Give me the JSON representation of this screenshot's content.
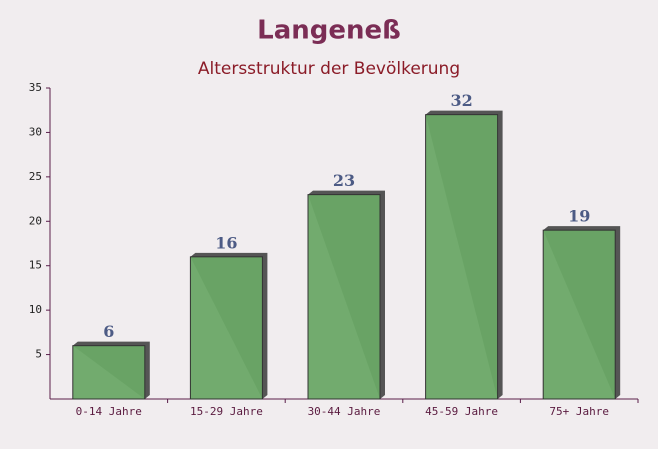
{
  "chart_data": {
    "type": "bar",
    "title": "Langeneß",
    "subtitle": "Altersstruktur der Bevölkerung",
    "categories": [
      "0-14 Jahre",
      "15-29 Jahre",
      "30-44 Jahre",
      "45-59 Jahre",
      "75+ Jahre"
    ],
    "values": [
      6,
      16,
      23,
      32,
      19
    ],
    "color": "#6aa866",
    "ylim": [
      0,
      35
    ],
    "yticks": [
      5,
      10,
      15,
      20,
      25,
      30,
      35
    ],
    "grid": false
  }
}
